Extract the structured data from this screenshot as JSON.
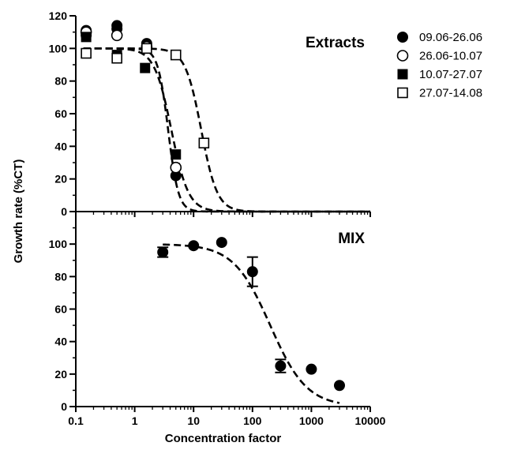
{
  "chart_data": {
    "type": "scatter",
    "x_scale": "log",
    "xlabel": "Concentration factor",
    "ylabel": "Growth rate (%CT)",
    "xlim": [
      0.1,
      10000
    ],
    "x_ticks": [
      "0.1",
      "1",
      "10",
      "100",
      "1000",
      "10000"
    ],
    "y_ticks": [
      "0",
      "20",
      "40",
      "60",
      "80",
      "100",
      "120"
    ],
    "legend": {
      "placement": "right",
      "entries": [
        {
          "label": "09.06-26.06",
          "marker": "filled-circle"
        },
        {
          "label": "26.06-10.07",
          "marker": "open-circle"
        },
        {
          "label": "10.07-27.07",
          "marker": "filled-square"
        },
        {
          "label": "27.07-14.08",
          "marker": "open-square"
        }
      ]
    },
    "panels": [
      {
        "label": "Extracts",
        "ylim": [
          0,
          120
        ],
        "series": [
          {
            "name": "09.06-26.06",
            "marker": "filled-circle",
            "points": [
              [
                0.15,
                111
              ],
              [
                0.15,
                108
              ],
              [
                0.5,
                114
              ],
              [
                0.5,
                112
              ],
              [
                1.6,
                103
              ],
              [
                5,
                22
              ]
            ]
          },
          {
            "name": "26.06-10.07",
            "marker": "open-circle",
            "points": [
              [
                0.15,
                110
              ],
              [
                0.5,
                108
              ],
              [
                1.6,
                101
              ],
              [
                5,
                27
              ]
            ]
          },
          {
            "name": "10.07-27.07",
            "marker": "filled-square",
            "points": [
              [
                0.15,
                107
              ],
              [
                0.5,
                96
              ],
              [
                1.5,
                88
              ],
              [
                5,
                35
              ]
            ]
          },
          {
            "name": "27.07-14.08",
            "marker": "open-square",
            "points": [
              [
                0.15,
                97
              ],
              [
                0.5,
                94
              ],
              [
                1.6,
                100
              ],
              [
                5,
                96
              ],
              [
                15,
                42
              ]
            ]
          }
        ],
        "fits": [
          {
            "top": 100,
            "ec50": 3.7,
            "hill": 5
          },
          {
            "top": 100,
            "ec50": 4.2,
            "hill": 3
          },
          {
            "top": 100,
            "ec50": 13.5,
            "hill": 3.2
          }
        ]
      },
      {
        "label": "MIX",
        "ylim": [
          0,
          120
        ],
        "series": [
          {
            "name": "MIX",
            "marker": "filled-circle",
            "points": [
              {
                "x": 3,
                "y": 95,
                "err": 3
              },
              {
                "x": 10,
                "y": 99
              },
              {
                "x": 30,
                "y": 101
              },
              {
                "x": 100,
                "y": 83,
                "err": 9
              },
              {
                "x": 300,
                "y": 25,
                "err": 4
              },
              {
                "x": 1000,
                "y": 23
              },
              {
                "x": 3000,
                "y": 13
              }
            ]
          }
        ],
        "fits": [
          {
            "top": 100,
            "ec50": 200,
            "hill": 1.4,
            "xmin": 3,
            "xmax": 3000
          }
        ]
      }
    ]
  }
}
